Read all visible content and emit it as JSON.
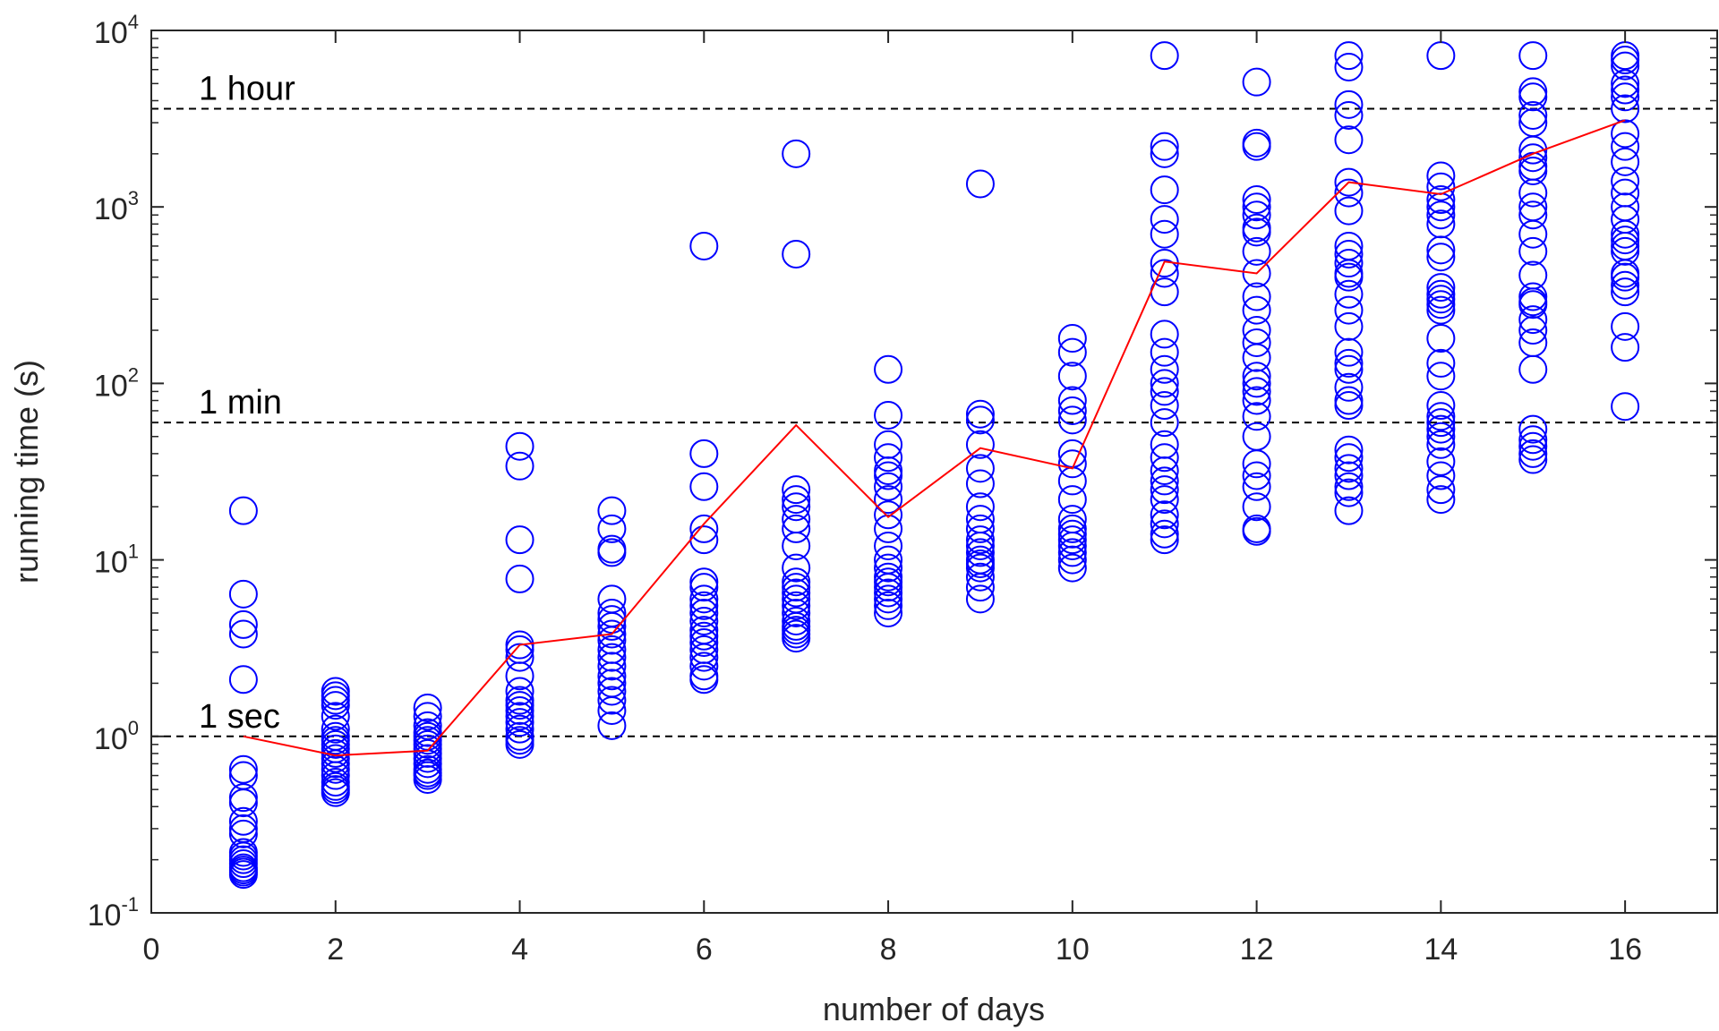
{
  "chart_data": {
    "type": "scatter",
    "xlabel": "number of days",
    "ylabel": "running time (s)",
    "xlim": [
      0,
      17
    ],
    "ylim": [
      0.1,
      10000
    ],
    "yscale": "log",
    "xticks": [
      "0",
      "2",
      "4",
      "6",
      "8",
      "10",
      "12",
      "14",
      "16"
    ],
    "yticks": [
      {
        "base": "10",
        "exp": "-1"
      },
      {
        "base": "10",
        "exp": "0"
      },
      {
        "base": "10",
        "exp": "1"
      },
      {
        "base": "10",
        "exp": "2"
      },
      {
        "base": "10",
        "exp": "3"
      },
      {
        "base": "10",
        "exp": "4"
      }
    ],
    "reference_lines": [
      {
        "label": "1 sec",
        "value": 1
      },
      {
        "label": "1 min",
        "value": 60
      },
      {
        "label": "1 hour",
        "value": 3600
      }
    ],
    "marker_color": "#0000ff",
    "line_color": "#ff0000",
    "scatter": [
      {
        "x": 1,
        "y": [
          19,
          6.4,
          4.3,
          3.8,
          2.1,
          0.65,
          0.6,
          0.45,
          0.42,
          0.33,
          0.3,
          0.28,
          0.22,
          0.21,
          0.2,
          0.19,
          0.18,
          0.175,
          0.17,
          0.165
        ]
      },
      {
        "x": 2,
        "y": [
          1.8,
          1.7,
          1.6,
          1.5,
          1.3,
          1.1,
          1.0,
          0.95,
          0.9,
          0.85,
          0.8,
          0.75,
          0.7,
          0.65,
          0.6,
          0.55,
          0.52,
          0.5,
          0.48
        ]
      },
      {
        "x": 3,
        "y": [
          1.45,
          1.3,
          1.15,
          1.05,
          1.0,
          0.95,
          0.9,
          0.85,
          0.8,
          0.75,
          0.7,
          0.65,
          0.62,
          0.6,
          0.57
        ]
      },
      {
        "x": 4,
        "y": [
          44,
          34,
          13,
          7.8,
          3.3,
          3.1,
          2.8,
          2.2,
          1.8,
          1.6,
          1.5,
          1.4,
          1.3,
          1.2,
          1.1,
          1.0,
          0.95,
          0.9
        ]
      },
      {
        "x": 5,
        "y": [
          19,
          15,
          11.5,
          11,
          6,
          5,
          4.6,
          4.2,
          3.8,
          3.5,
          3.1,
          2.8,
          2.5,
          2.2,
          2.0,
          1.8,
          1.6,
          1.4,
          1.15
        ]
      },
      {
        "x": 6,
        "y": [
          600,
          40,
          26,
          15,
          13,
          7.5,
          7,
          6,
          5.5,
          5,
          4.5,
          4,
          3.7,
          3.4,
          3.1,
          2.8,
          2.5,
          2.2,
          2.1
        ]
      },
      {
        "x": 7,
        "y": [
          2000,
          540,
          25,
          22,
          20,
          17,
          15,
          12,
          9,
          7.5,
          7,
          6.5,
          6,
          5.5,
          5,
          4.5,
          4.2,
          4,
          3.8,
          3.6
        ]
      },
      {
        "x": 8,
        "y": [
          120,
          66,
          45,
          38,
          32,
          30,
          26,
          22,
          18,
          15,
          12,
          10,
          9,
          8,
          7.5,
          7,
          6.5,
          6,
          5.5,
          5
        ]
      },
      {
        "x": 9,
        "y": [
          1350,
          67,
          62,
          45,
          33,
          27,
          20,
          17,
          15,
          13,
          12,
          11,
          10,
          9.5,
          9,
          8,
          7,
          6
        ]
      },
      {
        "x": 10,
        "y": [
          180,
          150,
          110,
          80,
          70,
          62,
          40,
          35,
          28,
          22,
          17,
          15,
          14,
          13,
          12,
          11,
          10,
          9
        ]
      },
      {
        "x": 11,
        "y": [
          7200,
          2200,
          2000,
          1250,
          850,
          700,
          480,
          420,
          330,
          190,
          150,
          120,
          100,
          90,
          75,
          60,
          45,
          38,
          32,
          28,
          25,
          22,
          18,
          16,
          14,
          13
        ]
      },
      {
        "x": 12,
        "y": [
          5100,
          2300,
          2200,
          1100,
          1000,
          900,
          760,
          720,
          560,
          420,
          310,
          260,
          200,
          170,
          140,
          110,
          100,
          90,
          80,
          65,
          50,
          35,
          30,
          26,
          20,
          15,
          14.5
        ]
      },
      {
        "x": 13,
        "y": [
          7200,
          6200,
          3800,
          3300,
          2400,
          1380,
          1200,
          950,
          600,
          540,
          480,
          420,
          400,
          320,
          260,
          210,
          150,
          130,
          120,
          95,
          80,
          75,
          42,
          38,
          33,
          30,
          26,
          24,
          19
        ]
      },
      {
        "x": 14,
        "y": [
          7200,
          1500,
          1300,
          1100,
          1000,
          900,
          800,
          570,
          520,
          350,
          320,
          300,
          280,
          260,
          180,
          130,
          110,
          75,
          65,
          60,
          55,
          50,
          45,
          36,
          30,
          25,
          22
        ]
      },
      {
        "x": 15,
        "y": [
          7200,
          4500,
          4200,
          3300,
          3000,
          2100,
          1900,
          1700,
          1600,
          1200,
          1000,
          900,
          700,
          560,
          410,
          310,
          290,
          280,
          230,
          200,
          170,
          120,
          55,
          48,
          44,
          40,
          37
        ]
      },
      {
        "x": 16,
        "y": [
          7200,
          6800,
          6300,
          5000,
          4600,
          4200,
          3600,
          2600,
          2200,
          1800,
          1400,
          1200,
          1000,
          850,
          700,
          650,
          600,
          560,
          420,
          400,
          360,
          330,
          210,
          160,
          74
        ]
      }
    ],
    "line": {
      "x": [
        1,
        2,
        3,
        4,
        5,
        6,
        7,
        8,
        9,
        10,
        11,
        12,
        13,
        14,
        15,
        16
      ],
      "y": [
        1.0,
        0.78,
        0.83,
        3.3,
        3.8,
        16,
        58,
        17.5,
        43,
        33,
        490,
        420,
        1380,
        1180,
        2000,
        3100
      ]
    }
  }
}
